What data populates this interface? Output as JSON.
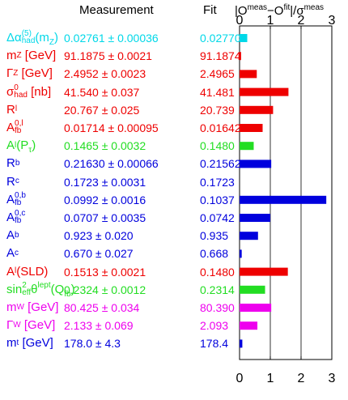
{
  "header": {
    "measurement": "Measurement",
    "fit": "Fit",
    "pull_prefix": "|O",
    "pull_meas_sup": "meas",
    "pull_minus": "−O",
    "pull_fit_sup": "fit",
    "pull_mid": "|/σ",
    "pull_meas_sup2": "meas"
  },
  "rows": [
    {
      "lbl_main": "Δα",
      "lbl_sub": "had",
      "lbl_sup": "(5)",
      "lbl_tail": "(m",
      "lbl_tail_sub": "Z",
      "lbl_tail_end": ")",
      "measurement": "0.02761 ± 0.00036",
      "fit": "0.02770",
      "pull": 0.25,
      "color": "#00d8e8"
    },
    {
      "lbl_main": "m",
      "lbl_sub": "Z",
      "lbl_sup": "",
      "lbl_tail": " [GeV]",
      "lbl_tail_sub": "",
      "lbl_tail_end": "",
      "measurement": "91.1875 ± 0.0021",
      "fit": "91.1874",
      "pull": 0.05,
      "color": "#ee0000"
    },
    {
      "lbl_main": "Γ",
      "lbl_sub": "Z",
      "lbl_sup": "",
      "lbl_tail": " [GeV]",
      "lbl_tail_sub": "",
      "lbl_tail_end": "",
      "measurement": "2.4952 ± 0.0023",
      "fit": "2.4965",
      "pull": 0.56,
      "color": "#ee0000"
    },
    {
      "lbl_main": "σ",
      "lbl_sub": "had",
      "lbl_sup": "0",
      "lbl_tail": " [nb]",
      "lbl_tail_sub": "",
      "lbl_tail_end": "",
      "measurement": "41.540 ± 0.037",
      "fit": "41.481",
      "pull": 1.59,
      "color": "#ee0000"
    },
    {
      "lbl_main": "R",
      "lbl_sub": "l",
      "lbl_sup": "",
      "lbl_tail": "",
      "lbl_tail_sub": "",
      "lbl_tail_end": "",
      "measurement": "20.767 ± 0.025",
      "fit": "20.739",
      "pull": 1.09,
      "color": "#ee0000"
    },
    {
      "lbl_main": "A",
      "lbl_sub": "fb",
      "lbl_sup": "0,l",
      "lbl_tail": "",
      "lbl_tail_sub": "",
      "lbl_tail_end": "",
      "measurement": "0.01714 ± 0.00095",
      "fit": "0.01642",
      "pull": 0.75,
      "color": "#ee0000"
    },
    {
      "lbl_main": "A",
      "lbl_sub": "l",
      "lbl_sup": "",
      "lbl_tail": "(P",
      "lbl_tail_sub": "τ",
      "lbl_tail_end": ")",
      "measurement": "0.1465 ± 0.0032",
      "fit": "0.1480",
      "pull": 0.46,
      "color": "#22dd22"
    },
    {
      "lbl_main": "R",
      "lbl_sub": "b",
      "lbl_sup": "",
      "lbl_tail": "",
      "lbl_tail_sub": "",
      "lbl_tail_end": "",
      "measurement": "0.21630 ± 0.00066",
      "fit": "0.21562",
      "pull": 1.03,
      "color": "#0000dd"
    },
    {
      "lbl_main": "R",
      "lbl_sub": "c",
      "lbl_sup": "",
      "lbl_tail": "",
      "lbl_tail_sub": "",
      "lbl_tail_end": "",
      "measurement": "0.1723 ± 0.0031",
      "fit": "0.1723",
      "pull": 0.0,
      "color": "#0000dd"
    },
    {
      "lbl_main": "A",
      "lbl_sub": "fb",
      "lbl_sup": "0,b",
      "lbl_tail": "",
      "lbl_tail_sub": "",
      "lbl_tail_end": "",
      "measurement": "0.0992 ± 0.0016",
      "fit": "0.1037",
      "pull": 2.82,
      "color": "#0000dd"
    },
    {
      "lbl_main": "A",
      "lbl_sub": "fb",
      "lbl_sup": "0,c",
      "lbl_tail": "",
      "lbl_tail_sub": "",
      "lbl_tail_end": "",
      "measurement": "0.0707 ± 0.0035",
      "fit": "0.0742",
      "pull": 1.0,
      "color": "#0000dd"
    },
    {
      "lbl_main": "A",
      "lbl_sub": "b",
      "lbl_sup": "",
      "lbl_tail": "",
      "lbl_tail_sub": "",
      "lbl_tail_end": "",
      "measurement": "0.923 ± 0.020",
      "fit": "0.935",
      "pull": 0.6,
      "color": "#0000dd"
    },
    {
      "lbl_main": "A",
      "lbl_sub": "c",
      "lbl_sup": "",
      "lbl_tail": "",
      "lbl_tail_sub": "",
      "lbl_tail_end": "",
      "measurement": "0.670 ± 0.027",
      "fit": "0.668",
      "pull": 0.07,
      "color": "#0000dd"
    },
    {
      "lbl_main": "A",
      "lbl_sub": "l",
      "lbl_sup": "",
      "lbl_tail": "(SLD)",
      "lbl_tail_sub": "",
      "lbl_tail_end": "",
      "measurement": "0.1513 ± 0.0021",
      "fit": "0.1480",
      "pull": 1.57,
      "color": "#ee0000"
    },
    {
      "lbl_main": "sin",
      "lbl_sub": "eff",
      "lbl_sup": "2",
      "lbl_mid": "θ",
      "lbl_sup2": "lept",
      "lbl_tail": "(Q",
      "lbl_tail_sub": "fb",
      "lbl_tail_end": ")",
      "measurement": "0.2324 ± 0.0012",
      "fit": "0.2314",
      "pull": 0.83,
      "color": "#22dd22"
    },
    {
      "lbl_main": "m",
      "lbl_sub": "W",
      "lbl_sup": "",
      "lbl_tail": " [GeV]",
      "lbl_tail_sub": "",
      "lbl_tail_end": "",
      "measurement": "80.425 ± 0.034",
      "fit": "80.390",
      "pull": 1.03,
      "color": "#ee00ee"
    },
    {
      "lbl_main": "Γ",
      "lbl_sub": "W",
      "lbl_sup": "",
      "lbl_tail": " [GeV]",
      "lbl_tail_sub": "",
      "lbl_tail_end": "",
      "measurement": "2.133 ± 0.069",
      "fit": "2.093",
      "pull": 0.58,
      "color": "#ee00ee"
    },
    {
      "lbl_main": "m",
      "lbl_sub": "t",
      "lbl_sup": "",
      "lbl_tail": " [GeV]",
      "lbl_tail_sub": "",
      "lbl_tail_end": "",
      "measurement": "178.0 ± 4.3",
      "fit": "178.4",
      "pull": 0.09,
      "color": "#0000dd"
    }
  ],
  "chart_data": {
    "type": "bar",
    "orientation": "horizontal",
    "categories": [
      "Δα(5)had(mZ)",
      "mZ [GeV]",
      "ΓZ [GeV]",
      "σ0had [nb]",
      "Rl",
      "A0,lfb",
      "Al(Pτ)",
      "Rb",
      "Rc",
      "A0,bfb",
      "A0,cfb",
      "Ab",
      "Ac",
      "Al(SLD)",
      "sin2θlepteff(Qfb)",
      "mW [GeV]",
      "ΓW [GeV]",
      "mt [GeV]"
    ],
    "values": [
      0.25,
      0.05,
      0.56,
      1.59,
      1.09,
      0.75,
      0.46,
      1.03,
      0.0,
      2.82,
      1.0,
      0.6,
      0.07,
      1.57,
      0.83,
      1.03,
      0.58,
      0.09
    ],
    "xlim": [
      0,
      3
    ],
    "xticks": [
      0,
      1,
      2,
      3
    ],
    "xtick_labels": [
      "0",
      "1",
      "2",
      "3"
    ],
    "grid": true
  }
}
